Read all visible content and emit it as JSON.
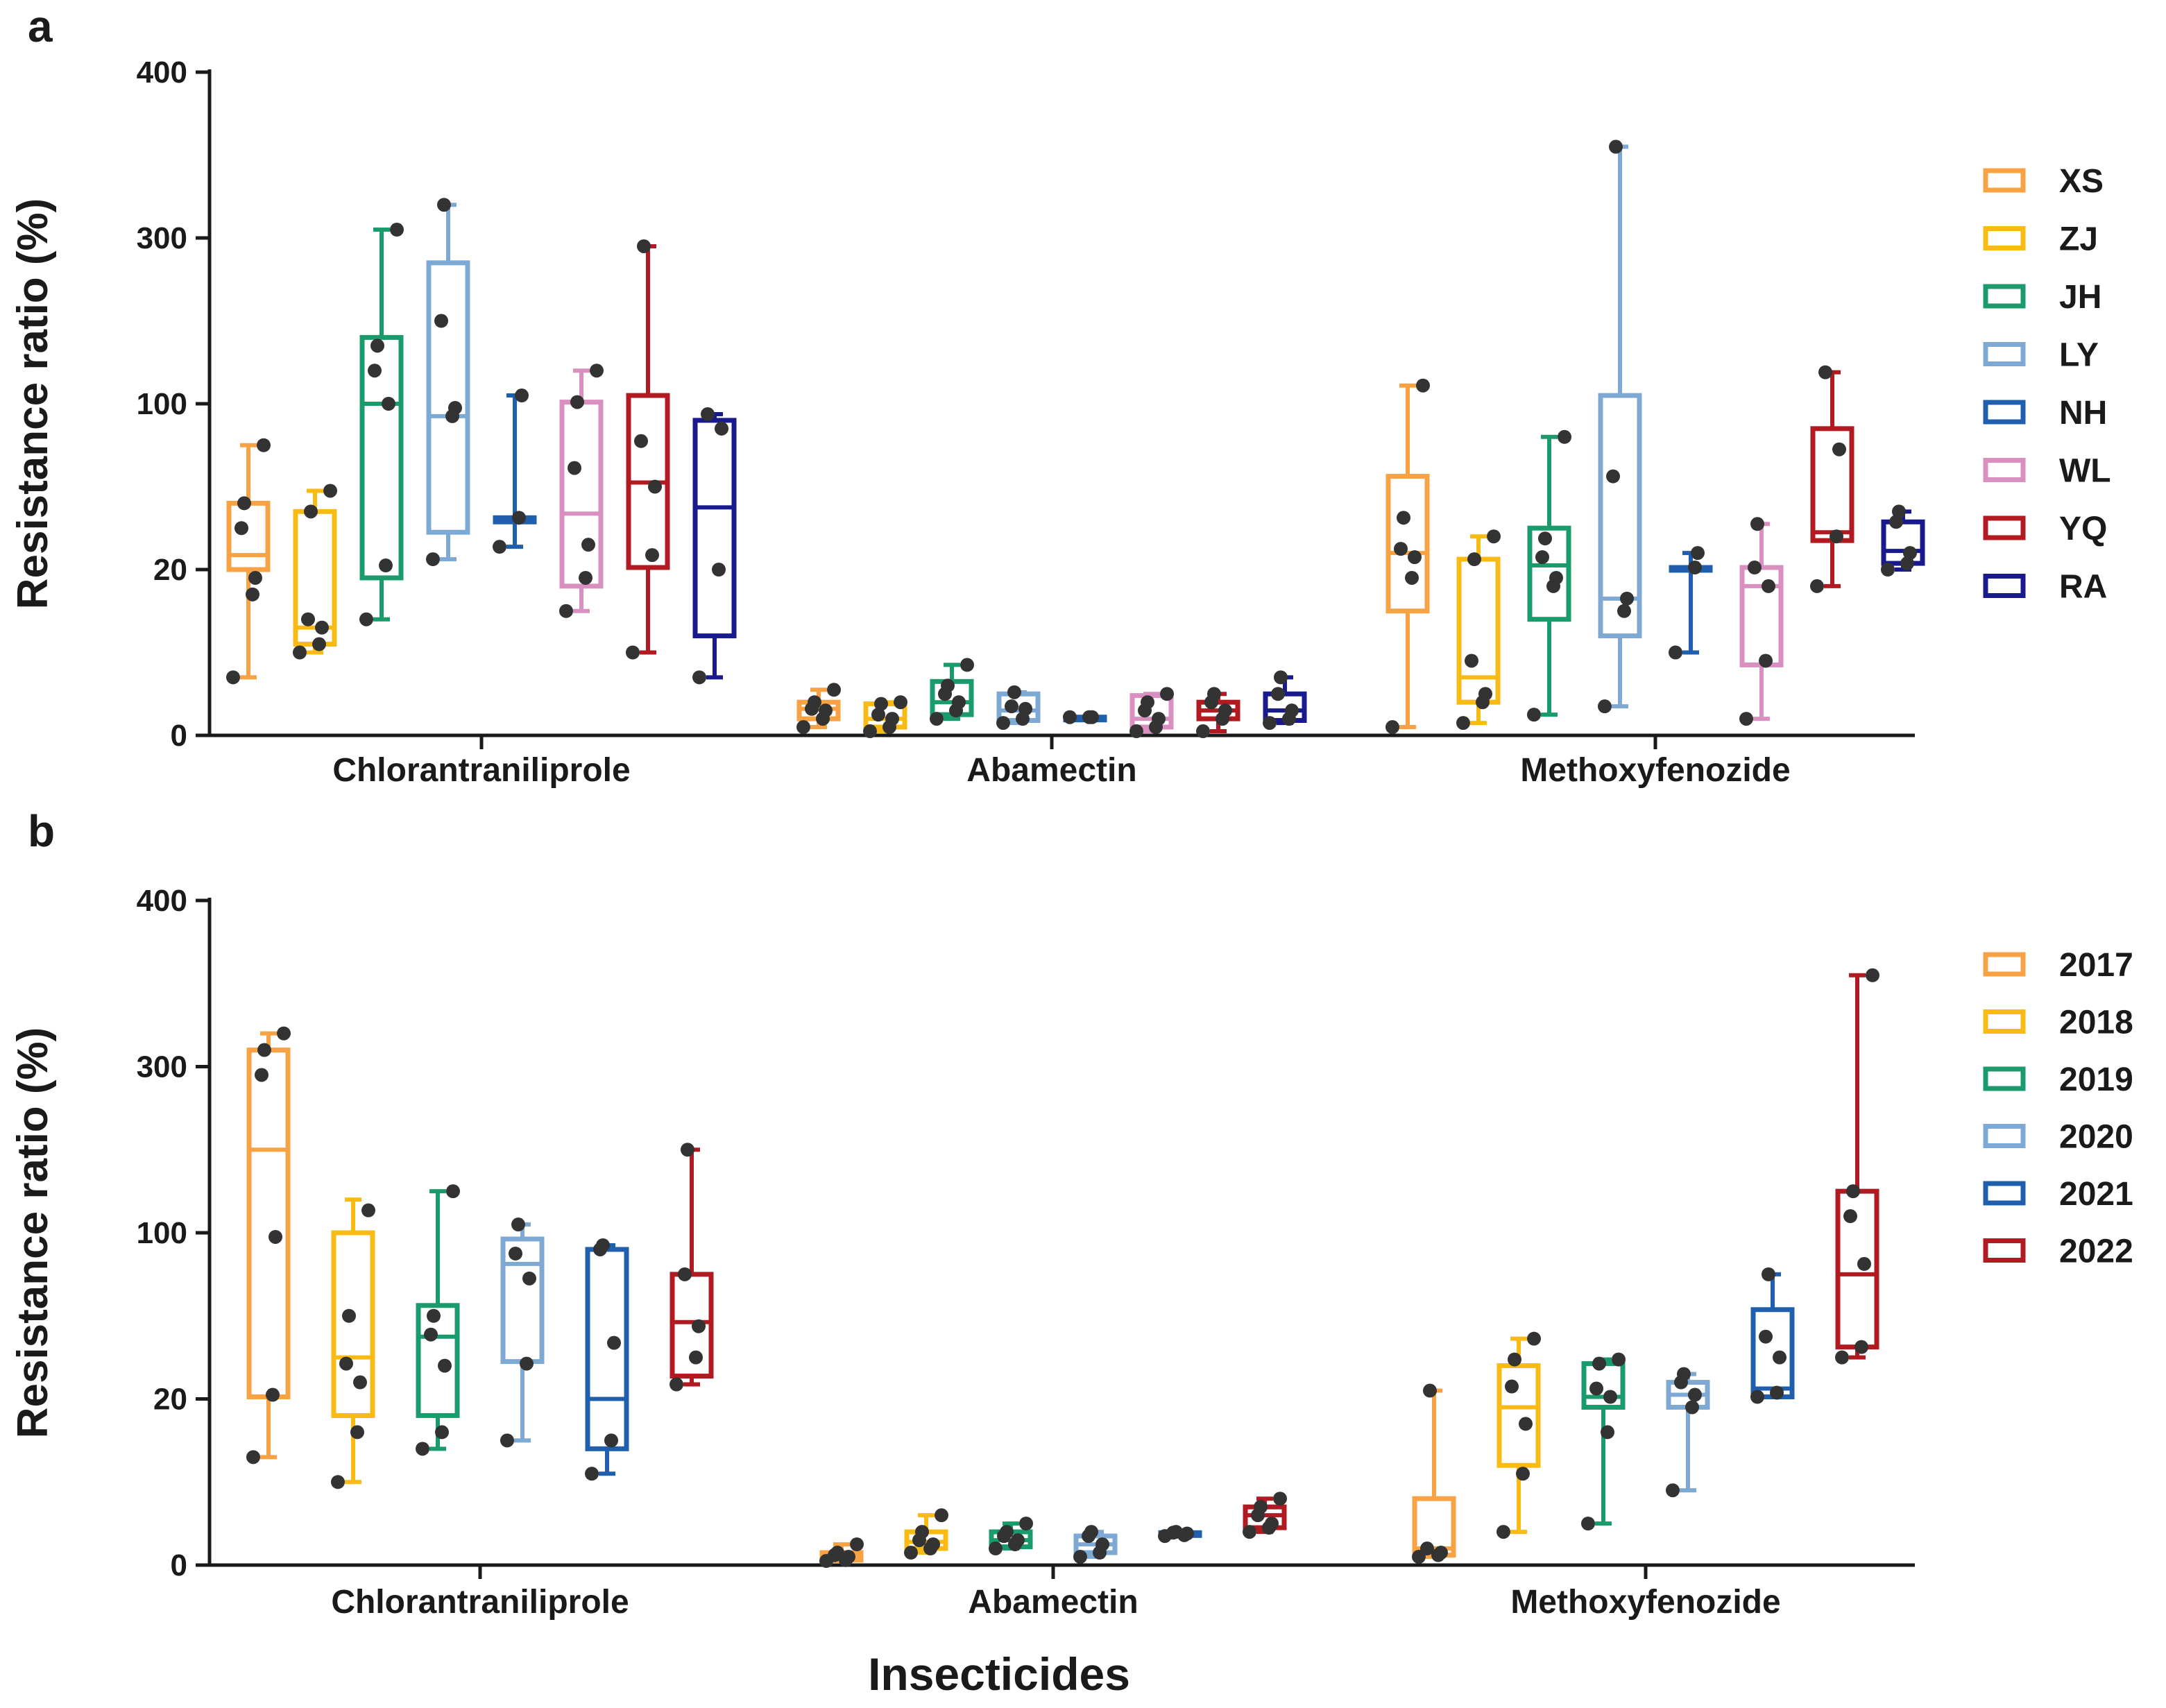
{
  "figure": {
    "xlabel": "Insecticides"
  },
  "chart_data": [
    {
      "panel": "a",
      "type": "box",
      "ylabel": "Resistance ratio (%)",
      "xlabel": "",
      "yscale": "segmented",
      "ticks": [
        0,
        20,
        100,
        300,
        400
      ],
      "categories": [
        "Chlorantraniliprole",
        "Abamectin",
        "Methoxyfenozide"
      ],
      "series": [
        {
          "name": "XS",
          "color": "#F9A244",
          "groups": [
            {
              "min": 7,
              "q1": 20,
              "median": 27,
              "q3": 52,
              "max": 80,
              "points": [
                7,
                17,
                19,
                40,
                52,
                80
              ]
            },
            {
              "min": 1,
              "q1": 2,
              "median": 3.2,
              "q3": 4,
              "max": 5.5,
              "points": [
                1,
                2,
                3,
                3.2,
                4,
                5.5
              ]
            },
            {
              "min": 1,
              "q1": 15,
              "median": 28,
              "q3": 65,
              "max": 122,
              "points": [
                1,
                19,
                26,
                30,
                45,
                122
              ]
            }
          ]
        },
        {
          "name": "ZJ",
          "color": "#F9BB13",
          "groups": [
            {
              "min": 10,
              "q1": 11,
              "median": 13,
              "q3": 48,
              "max": 58,
              "points": [
                10,
                11,
                13,
                14,
                48,
                58
              ]
            },
            {
              "min": 0.5,
              "q1": 1,
              "median": 2,
              "q3": 3.8,
              "max": 4,
              "points": [
                0.5,
                1,
                2,
                2.5,
                3.8,
                4
              ]
            },
            {
              "min": 1.5,
              "q1": 4,
              "median": 7,
              "q3": 25,
              "max": 36,
              "points": [
                1.5,
                4,
                5,
                9,
                25,
                36
              ]
            }
          ]
        },
        {
          "name": "JH",
          "color": "#1A9B6B",
          "groups": [
            {
              "min": 14,
              "q1": 19,
              "median": 100,
              "q3": 180,
              "max": 305,
              "points": [
                14,
                22,
                100,
                140,
                170,
                305
              ]
            },
            {
              "min": 2,
              "q1": 2.5,
              "median": 4,
              "q3": 6.5,
              "max": 8.5,
              "points": [
                2,
                3,
                4,
                5,
                6,
                8.5
              ]
            },
            {
              "min": 2.5,
              "q1": 14,
              "median": 22,
              "q3": 40,
              "max": 84,
              "points": [
                2.5,
                18,
                19,
                26,
                35,
                84
              ]
            }
          ]
        },
        {
          "name": "LY",
          "color": "#7FA9D5",
          "groups": [
            {
              "min": 25,
              "q1": 38,
              "median": 94,
              "q3": 270,
              "max": 320,
              "points": [
                25,
                94,
                98,
                200,
                320
              ]
            },
            {
              "min": 1.5,
              "q1": 1.8,
              "median": 3,
              "q3": 5,
              "max": 5.2,
              "points": [
                1.5,
                2,
                3.2,
                3.5,
                5.2
              ]
            },
            {
              "min": 3.5,
              "q1": 12,
              "median": 16.5,
              "q3": 110,
              "max": 355,
              "points": [
                3.5,
                15,
                16.5,
                65,
                355
              ]
            }
          ]
        },
        {
          "name": "NH",
          "color": "#1F5FAD",
          "groups": [
            {
              "min": 31,
              "q1": 43,
              "median": 45,
              "q3": 45,
              "max": 110,
              "points": [
                31,
                45,
                110
              ]
            },
            {
              "min": 2.2,
              "q1": 2.2,
              "median": 2.2,
              "q3": 2.2,
              "max": 2.2,
              "points": [
                2.2,
                2.2,
                2.2
              ]
            },
            {
              "min": 10,
              "q1": 20,
              "median": 21,
              "q3": 21,
              "max": 28,
              "points": [
                10,
                21,
                28
              ]
            }
          ]
        },
        {
          "name": "WL",
          "color": "#D98FC0",
          "groups": [
            {
              "min": 15,
              "q1": 18,
              "median": 47,
              "q3": 102,
              "max": 140,
              "points": [
                15,
                19,
                32,
                69,
                102,
                140
              ]
            },
            {
              "min": 0.5,
              "q1": 1,
              "median": 2,
              "q3": 4.8,
              "max": 5,
              "points": [
                0.5,
                1,
                2,
                3,
                4,
                5
              ]
            },
            {
              "min": 2,
              "q1": 8.5,
              "median": 18,
              "q3": 21,
              "max": 42,
              "points": [
                2,
                9,
                18,
                21,
                42
              ]
            }
          ]
        },
        {
          "name": "YQ",
          "color": "#B01A20",
          "groups": [
            {
              "min": 10,
              "q1": 21,
              "median": 62,
              "q3": 110,
              "max": 290,
              "points": [
                10,
                27,
                60,
                82,
                290
              ]
            },
            {
              "min": 0.5,
              "q1": 2,
              "median": 3,
              "q3": 4,
              "max": 5,
              "points": [
                0.5,
                2,
                3,
                4,
                5
              ]
            },
            {
              "min": 18,
              "q1": 34,
              "median": 38,
              "q3": 88,
              "max": 138,
              "points": [
                18,
                36,
                78,
                138
              ]
            }
          ]
        },
        {
          "name": "RA",
          "color": "#1A1A8F",
          "groups": [
            {
              "min": 7,
              "q1": 12,
              "median": 50,
              "q3": 92,
              "max": 95,
              "points": [
                7,
                20,
                88,
                95
              ]
            },
            {
              "min": 1.5,
              "q1": 1.8,
              "median": 3,
              "q3": 5,
              "max": 7,
              "points": [
                1.5,
                2,
                3,
                5,
                7
              ]
            },
            {
              "min": 20,
              "q1": 23,
              "median": 29,
              "q3": 43,
              "max": 48,
              "points": [
                20,
                23,
                28,
                43,
                48
              ]
            }
          ]
        }
      ]
    },
    {
      "panel": "b",
      "type": "box",
      "ylabel": "Resistance ratio (%)",
      "xlabel": "Insecticides",
      "yscale": "segmented",
      "ticks": [
        0,
        20,
        100,
        300,
        400
      ],
      "categories": [
        "Chlorantraniliprole",
        "Abamectin",
        "Methoxyfenozide"
      ],
      "series": [
        {
          "name": "2017",
          "color": "#F9A244",
          "groups": [
            {
              "min": 13,
              "q1": 21,
              "median": 200,
              "q3": 310,
              "max": 320,
              "points": [
                13,
                22,
                98,
                290,
                310,
                320
              ]
            },
            {
              "min": 0.5,
              "q1": 0.6,
              "median": 1,
              "q3": 1.5,
              "max": 2.5,
              "points": [
                0.5,
                0.6,
                1,
                1.2,
                1.5,
                2.5
              ]
            },
            {
              "min": 1,
              "q1": 1.2,
              "median": 2,
              "q3": 8,
              "max": 24,
              "points": [
                1,
                1.2,
                1.5,
                2,
                24
              ]
            }
          ]
        },
        {
          "name": "2018",
          "color": "#F9BB13",
          "groups": [
            {
              "min": 10,
              "q1": 18,
              "median": 40,
              "q3": 100,
              "max": 140,
              "points": [
                10,
                16,
                28,
                37,
                60,
                127
              ]
            },
            {
              "min": 1.5,
              "q1": 2,
              "median": 2.8,
              "q3": 4,
              "max": 6,
              "points": [
                1.5,
                2,
                2.5,
                3,
                4,
                6
              ]
            },
            {
              "min": 4,
              "q1": 12,
              "median": 19,
              "q3": 36,
              "max": 49,
              "points": [
                4,
                11,
                17,
                26,
                39,
                49
              ]
            }
          ]
        },
        {
          "name": "2019",
          "color": "#1A9B6B",
          "groups": [
            {
              "min": 14,
              "q1": 18,
              "median": 50,
              "q3": 65,
              "max": 150,
              "points": [
                14,
                16,
                36,
                51,
                60,
                150
              ]
            },
            {
              "min": 2,
              "q1": 2.2,
              "median": 3,
              "q3": 4,
              "max": 5,
              "points": [
                2,
                2.5,
                3,
                3.5,
                4,
                5
              ]
            },
            {
              "min": 5,
              "q1": 19,
              "median": 21,
              "q3": 37,
              "max": 39,
              "points": [
                5,
                16,
                21,
                25,
                37,
                39
              ]
            }
          ]
        },
        {
          "name": "2020",
          "color": "#7FA9D5",
          "groups": [
            {
              "min": 15,
              "q1": 38,
              "median": 85,
              "q3": 97,
              "max": 110,
              "points": [
                15,
                37,
                78,
                90,
                110
              ]
            },
            {
              "min": 1,
              "q1": 1.5,
              "median": 2.5,
              "q3": 3.5,
              "max": 4,
              "points": [
                1,
                1.5,
                2.5,
                3.5,
                4
              ]
            },
            {
              "min": 9,
              "q1": 19,
              "median": 22,
              "q3": 28,
              "max": 32,
              "points": [
                9,
                19,
                22,
                28,
                32
              ]
            }
          ]
        },
        {
          "name": "2021",
          "color": "#1F5FAD",
          "groups": [
            {
              "min": 11,
              "q1": 14,
              "median": 20,
              "q3": 92,
              "max": 94,
              "points": [
                11,
                15,
                47,
                92,
                94
              ]
            },
            {
              "min": 3.5,
              "q1": 3.6,
              "median": 3.8,
              "q3": 3.9,
              "max": 4,
              "points": [
                3.5,
                3.6,
                3.8,
                3.9,
                4
              ]
            },
            {
              "min": 21,
              "q1": 21,
              "median": 25,
              "q3": 63,
              "max": 80,
              "points": [
                21,
                23,
                40,
                50,
                80
              ]
            }
          ]
        },
        {
          "name": "2022",
          "color": "#B01A20",
          "groups": [
            {
              "min": 27,
              "q1": 31,
              "median": 57,
              "q3": 80,
              "max": 200,
              "points": [
                27,
                40,
                55,
                80,
                200
              ]
            },
            {
              "min": 4,
              "q1": 4.5,
              "median": 6,
              "q3": 7,
              "max": 8,
              "points": [
                4,
                4.5,
                5,
                6,
                7,
                8
              ]
            },
            {
              "min": 40,
              "q1": 45,
              "median": 80,
              "q3": 150,
              "max": 355,
              "points": [
                40,
                45,
                85,
                120,
                150,
                355
              ]
            }
          ]
        }
      ]
    }
  ]
}
